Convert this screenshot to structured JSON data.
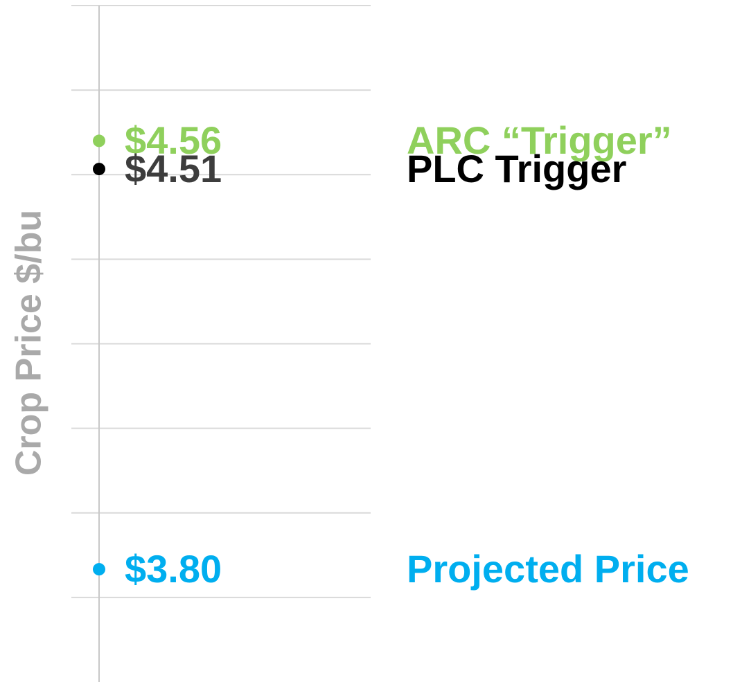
{
  "chart_data": {
    "type": "dot",
    "y_label": "Crop Price $/bu",
    "ylim": [
      3.6,
      4.8
    ],
    "yticks": [
      3.75,
      3.9,
      4.05,
      4.2,
      4.35,
      4.5,
      4.65,
      4.8
    ],
    "grid": true,
    "series": [
      {
        "name": "ARC “Trigger”",
        "color": "#8fd05c",
        "label_color": "#8fd05c",
        "values": [
          4.56
        ],
        "value_labels": [
          "$4.56"
        ]
      },
      {
        "name": "PLC Trigger",
        "color": "#000000",
        "label_color": "#3d3d3d",
        "values": [
          4.51
        ],
        "value_labels": [
          "$4.51"
        ]
      },
      {
        "name": "Projected Price",
        "color": "#00aeef",
        "label_color": "#00aeef",
        "values": [
          3.8
        ],
        "value_labels": [
          "$3.80"
        ]
      }
    ]
  }
}
